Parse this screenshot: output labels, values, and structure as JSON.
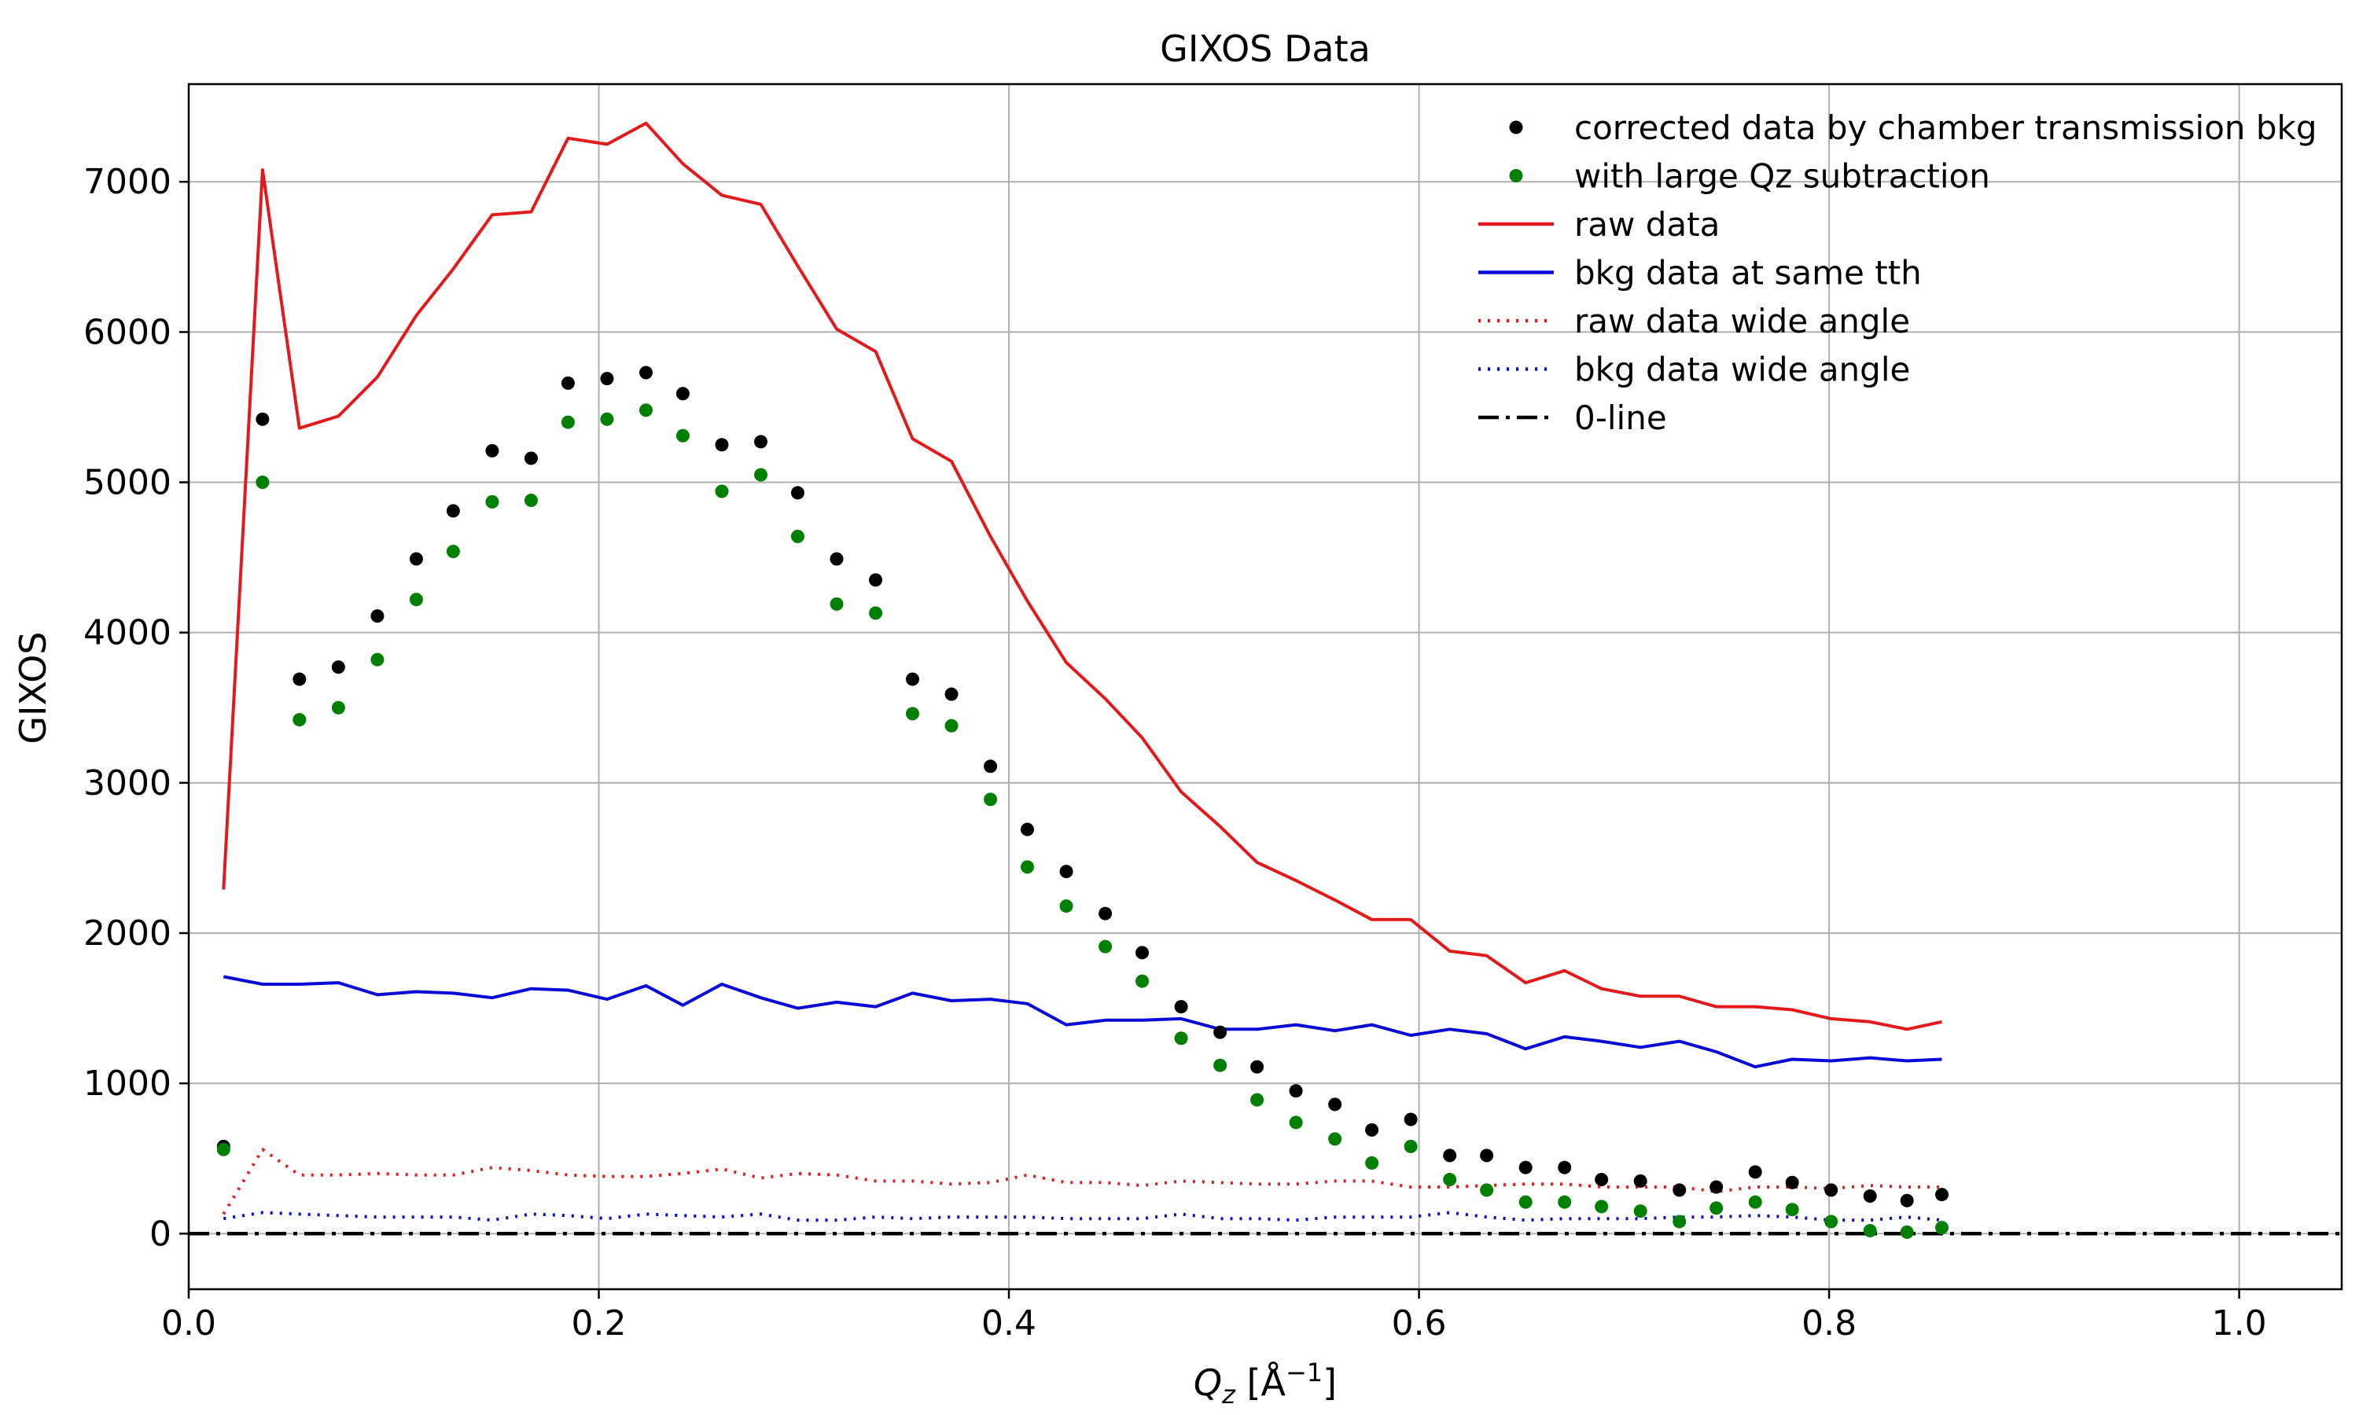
{
  "chart_data": {
    "type": "line",
    "title": "GIXOS Data",
    "xlabel_main": "Q",
    "xlabel_sub": "z",
    "xlabel_unit_pre": " [Å",
    "xlabel_unit_sup": "−1",
    "xlabel_unit_post": "]",
    "ylabel": "GIXOS",
    "xlim": [
      0.0,
      1.05
    ],
    "ylim": [
      -370,
      7650
    ],
    "xticks": [
      0.0,
      0.2,
      0.4,
      0.6,
      0.8,
      1.0
    ],
    "xtick_labels": [
      "0.0",
      "0.2",
      "0.4",
      "0.6",
      "0.8",
      "1.0"
    ],
    "yticks": [
      0,
      1000,
      2000,
      3000,
      4000,
      5000,
      6000,
      7000
    ],
    "ytick_labels": [
      "0",
      "1000",
      "2000",
      "3000",
      "4000",
      "5000",
      "6000",
      "7000"
    ],
    "grid": true,
    "legend_position": "top-right",
    "x": [
      0.017,
      0.036,
      0.054,
      0.073,
      0.092,
      0.111,
      0.129,
      0.148,
      0.167,
      0.185,
      0.204,
      0.223,
      0.241,
      0.26,
      0.279,
      0.297,
      0.316,
      0.335,
      0.353,
      0.372,
      0.391,
      0.409,
      0.428,
      0.447,
      0.465,
      0.484,
      0.503,
      0.521,
      0.54,
      0.559,
      0.577,
      0.596,
      0.615,
      0.633,
      0.652,
      0.671,
      0.689,
      0.708,
      0.727,
      0.745,
      0.764,
      0.782,
      0.801,
      0.82,
      0.838,
      0.855
    ],
    "series": [
      {
        "name": "corrected data by chamber transmission bkg",
        "style": "dot",
        "color": "#000000",
        "values": [
          580,
          5420,
          3690,
          3770,
          4110,
          4490,
          4810,
          5210,
          5160,
          5660,
          5690,
          5730,
          5590,
          5250,
          5270,
          4930,
          4490,
          4350,
          3690,
          3590,
          3110,
          2690,
          2410,
          2130,
          1870,
          1510,
          1340,
          1110,
          950,
          860,
          690,
          760,
          520,
          520,
          440,
          440,
          360,
          350,
          290,
          310,
          410,
          340,
          290,
          250,
          220,
          260
        ]
      },
      {
        "name": "with large Qz subtraction",
        "style": "dot",
        "color": "#008000",
        "values": [
          560,
          5000,
          3420,
          3500,
          3820,
          4220,
          4540,
          4870,
          4880,
          5400,
          5420,
          5480,
          5310,
          4940,
          5050,
          4640,
          4190,
          4130,
          3460,
          3380,
          2890,
          2440,
          2180,
          1910,
          1680,
          1300,
          1120,
          890,
          740,
          630,
          470,
          580,
          360,
          290,
          210,
          210,
          180,
          150,
          80,
          170,
          210,
          160,
          80,
          20,
          10,
          40
        ]
      },
      {
        "name": "raw data",
        "style": "solid",
        "color": "#e31a1c",
        "values": [
          2290,
          7080,
          5360,
          5440,
          5700,
          6110,
          6420,
          6780,
          6800,
          7290,
          7250,
          7390,
          7120,
          6910,
          6850,
          6440,
          6020,
          5870,
          5290,
          5140,
          4640,
          4210,
          3800,
          3560,
          3300,
          2940,
          2710,
          2470,
          2350,
          2220,
          2090,
          2090,
          1880,
          1850,
          1670,
          1750,
          1630,
          1580,
          1580,
          1510,
          1510,
          1490,
          1430,
          1410,
          1360,
          1410
        ]
      },
      {
        "name": "bkg data at same tth",
        "style": "solid",
        "color": "#0a0ad6",
        "values": [
          1710,
          1660,
          1660,
          1670,
          1590,
          1610,
          1600,
          1570,
          1630,
          1620,
          1560,
          1650,
          1520,
          1660,
          1570,
          1500,
          1540,
          1510,
          1600,
          1550,
          1560,
          1530,
          1390,
          1420,
          1420,
          1430,
          1360,
          1360,
          1390,
          1350,
          1390,
          1320,
          1360,
          1330,
          1230,
          1310,
          1280,
          1240,
          1280,
          1210,
          1110,
          1160,
          1150,
          1170,
          1150,
          1160
        ]
      },
      {
        "name": "raw data wide angle",
        "style": "dotted",
        "color": "#e31a1c",
        "values": [
          130,
          560,
          390,
          390,
          400,
          390,
          390,
          440,
          420,
          390,
          380,
          380,
          400,
          430,
          370,
          400,
          390,
          350,
          350,
          330,
          340,
          390,
          340,
          340,
          320,
          350,
          340,
          330,
          330,
          350,
          350,
          310,
          310,
          320,
          330,
          330,
          310,
          310,
          310,
          280,
          310,
          310,
          300,
          320,
          310,
          310
        ]
      },
      {
        "name": "bkg data wide angle",
        "style": "dotted",
        "color": "#0a0ad6",
        "values": [
          100,
          140,
          130,
          120,
          110,
          110,
          110,
          90,
          130,
          120,
          100,
          130,
          120,
          110,
          130,
          90,
          90,
          110,
          100,
          110,
          110,
          110,
          100,
          100,
          100,
          130,
          100,
          100,
          90,
          110,
          110,
          110,
          140,
          110,
          90,
          100,
          100,
          100,
          110,
          110,
          120,
          110,
          90,
          90,
          110,
          90
        ]
      },
      {
        "name": "0-line",
        "style": "dashdot",
        "color": "#000000",
        "x": [
          0.0,
          1.05
        ],
        "values": [
          0,
          0
        ]
      }
    ]
  }
}
